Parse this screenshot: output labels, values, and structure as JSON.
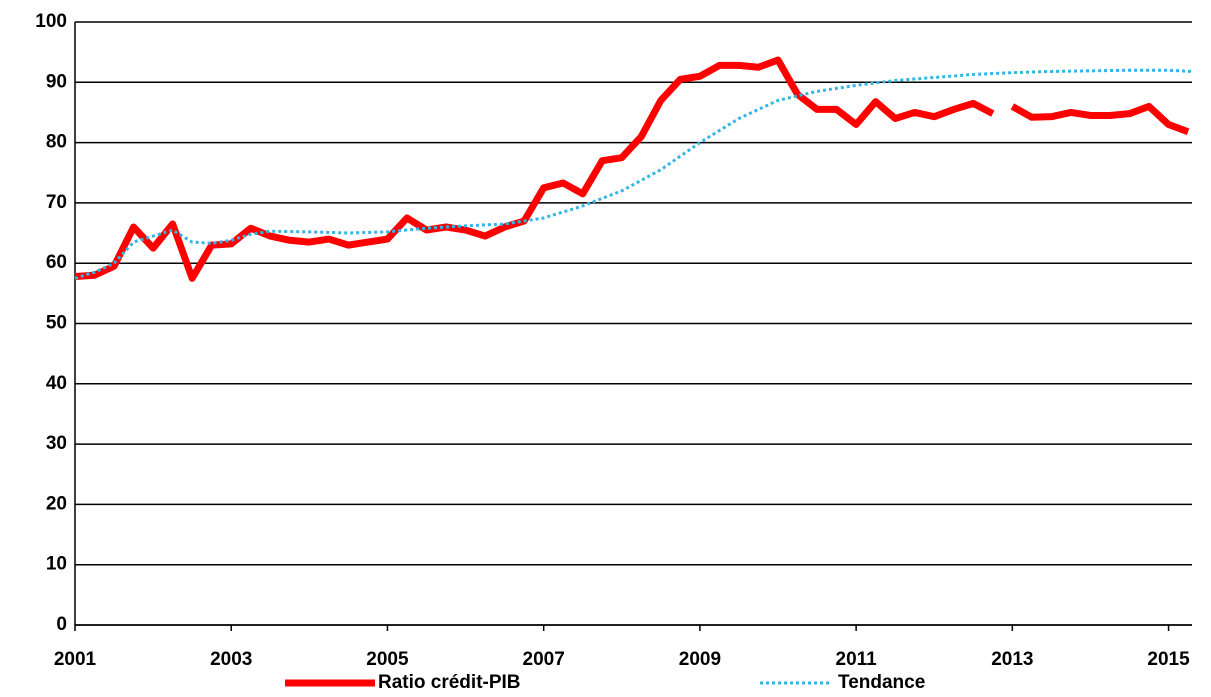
{
  "chart_data": {
    "type": "line",
    "series": [
      {
        "name": "Ratio crédit-PIB",
        "color": "#ff0000",
        "style": "solid",
        "x": [
          2001,
          2001.25,
          2001.5,
          2001.75,
          2002,
          2002.25,
          2002.5,
          2002.75,
          2003,
          2003.25,
          2003.5,
          2003.75,
          2004,
          2004.25,
          2004.5,
          2004.75,
          2005,
          2005.25,
          2005.5,
          2005.75,
          2006,
          2006.25,
          2006.5,
          2006.75,
          2007,
          2007.25,
          2007.5,
          2007.75,
          2008,
          2008.25,
          2008.5,
          2008.75,
          2009,
          2009.25,
          2009.5,
          2009.75,
          2010,
          2010.25,
          2010.5,
          2010.75,
          2011,
          2011.25,
          2011.5,
          2011.75,
          2012,
          2012.25,
          2012.5,
          2012.75,
          2012.875,
          2013,
          2013.25,
          2013.5,
          2013.75,
          2014,
          2014.25,
          2014.5,
          2014.75,
          2015,
          2015.25
        ],
        "values": [
          57.8,
          58,
          59.5,
          66,
          62.5,
          66.5,
          57.5,
          63,
          63.2,
          65.8,
          64.5,
          63.8,
          63.5,
          64,
          63,
          63.5,
          64,
          67.5,
          65.5,
          66,
          65.5,
          64.5,
          66,
          67,
          72.5,
          73.3,
          71.5,
          77,
          77.5,
          81,
          87,
          90.5,
          91,
          92.8,
          92.8,
          92.5,
          93.7,
          88,
          85.5,
          85.5,
          83,
          86.8,
          84,
          85,
          84.3,
          85.5,
          86.5,
          84.8,
          null,
          86,
          84.2,
          84.3,
          85,
          84.5,
          84.5,
          84.8,
          86,
          83,
          81.8
        ]
      },
      {
        "name": "Tendance",
        "color": "#33b5e5",
        "style": "dotted",
        "x": [
          2001,
          2001.25,
          2001.5,
          2001.75,
          2002,
          2002.25,
          2002.5,
          2002.75,
          2003,
          2003.25,
          2003.5,
          2004,
          2004.5,
          2005,
          2005.5,
          2006,
          2006.5,
          2007,
          2007.5,
          2008,
          2008.5,
          2009,
          2009.5,
          2010,
          2010.5,
          2011,
          2011.5,
          2012,
          2012.5,
          2013,
          2013.5,
          2014,
          2014.5,
          2015,
          2015.3
        ],
        "values": [
          57.5,
          58.5,
          60,
          63.5,
          64.5,
          65.5,
          63.5,
          63.3,
          63.8,
          64.8,
          65.3,
          65.2,
          65,
          65.2,
          65.8,
          66.2,
          66.5,
          67.5,
          69.5,
          72,
          75.5,
          80,
          84,
          87,
          88.5,
          89.5,
          90.3,
          90.8,
          91.3,
          91.6,
          91.8,
          91.9,
          92,
          92,
          91.8
        ]
      }
    ],
    "xlim": [
      2001,
      2015.3
    ],
    "xticks": [
      2001,
      2003,
      2005,
      2007,
      2009,
      2011,
      2013,
      2015
    ],
    "ylim": [
      0,
      100
    ],
    "yticks": [
      0,
      10,
      20,
      30,
      40,
      50,
      60,
      70,
      80,
      90,
      100
    ],
    "grid": true,
    "legend": "bottom"
  }
}
